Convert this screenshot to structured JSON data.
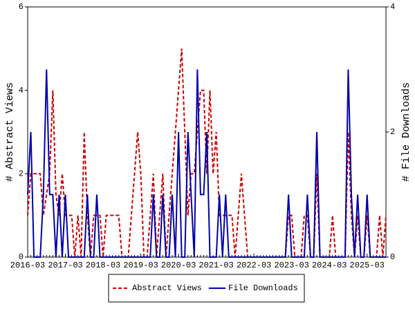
{
  "chart_data": {
    "type": "line",
    "y_label": "# Abstract Views",
    "y2_label": "# File Downloads",
    "categories": [
      "2016-03",
      null,
      null,
      null,
      null,
      null,
      null,
      null,
      null,
      null,
      null,
      null,
      "2017-03",
      null,
      null,
      null,
      null,
      null,
      null,
      null,
      null,
      null,
      null,
      null,
      "2018-03",
      null,
      null,
      null,
      null,
      null,
      null,
      null,
      null,
      null,
      null,
      null,
      "2019-03",
      null,
      null,
      null,
      null,
      null,
      null,
      null,
      null,
      null,
      null,
      null,
      "2020-03",
      null,
      null,
      null,
      null,
      null,
      null,
      null,
      null,
      null,
      null,
      null,
      "2021-03",
      null,
      null,
      null,
      null,
      null,
      null,
      null,
      null,
      null,
      null,
      null,
      "2022-03",
      null,
      null,
      null,
      null,
      null,
      null,
      null,
      null,
      null,
      null,
      null,
      "2023-03",
      null,
      null,
      null,
      null,
      null,
      null,
      null,
      null,
      null,
      null,
      null,
      "2024-03",
      null,
      null,
      null,
      null,
      null,
      null,
      null,
      null,
      null,
      null,
      null,
      "2025-03",
      null,
      null,
      null,
      null,
      null,
      null
    ],
    "ylim": [
      0,
      6
    ],
    "yticks": [
      0,
      2,
      4,
      6
    ],
    "y2lim": [
      0,
      4
    ],
    "y2ticks": [
      0,
      2,
      4
    ],
    "series": [
      {
        "name": "Abstract Views",
        "color": "#cc0000",
        "style": "dashed",
        "values": [
          1,
          2,
          2,
          2,
          2,
          1,
          1.5,
          2,
          4,
          1.5,
          1,
          2,
          1,
          1,
          1,
          0,
          1,
          0,
          3,
          1,
          0,
          1,
          1,
          1,
          0,
          1,
          1,
          1,
          1,
          1,
          0,
          0,
          0,
          1,
          2,
          3,
          2,
          0,
          0,
          1,
          2,
          0,
          1,
          2,
          0,
          1,
          2,
          3,
          4,
          5,
          3,
          1,
          2,
          2,
          3,
          4,
          4,
          2,
          4,
          2,
          3,
          1,
          1,
          1,
          1,
          1,
          0,
          1,
          2,
          1,
          0,
          0,
          0,
          0,
          0,
          0,
          0,
          0,
          0,
          0,
          0,
          0,
          0,
          1,
          1,
          0,
          0,
          0,
          1,
          1,
          0,
          0,
          2,
          0,
          0,
          0,
          0,
          1,
          0,
          0,
          0,
          0,
          3,
          1,
          0,
          1,
          0,
          0,
          1,
          0,
          0,
          0,
          1,
          0,
          1
        ]
      },
      {
        "name": "File Downloads",
        "color": "#0000aa",
        "style": "solid",
        "axis": "y2",
        "values": [
          1,
          2,
          0,
          0,
          0,
          1,
          3,
          1,
          1,
          0,
          1,
          0,
          1,
          0,
          0,
          0,
          0,
          0,
          0,
          1,
          0,
          0,
          1,
          0,
          0,
          0,
          0,
          0,
          0,
          0,
          0,
          0,
          0,
          0,
          0,
          0,
          0,
          0,
          0,
          0,
          1,
          0,
          0,
          1,
          0,
          0,
          1,
          0,
          2,
          0,
          0,
          2,
          1,
          0,
          3,
          1,
          1,
          2,
          0,
          0,
          0,
          1,
          0,
          1,
          0,
          0,
          0,
          0,
          0,
          0,
          0,
          0,
          0,
          0,
          0,
          0,
          0,
          0,
          0,
          0,
          0,
          0,
          0,
          1,
          0,
          0,
          0,
          0,
          0,
          1,
          0,
          0,
          2,
          0,
          0,
          0,
          0,
          0,
          0,
          0,
          0,
          0,
          3,
          1,
          0,
          1,
          0,
          0,
          1,
          0,
          0,
          0,
          0,
          0,
          0
        ]
      }
    ]
  }
}
